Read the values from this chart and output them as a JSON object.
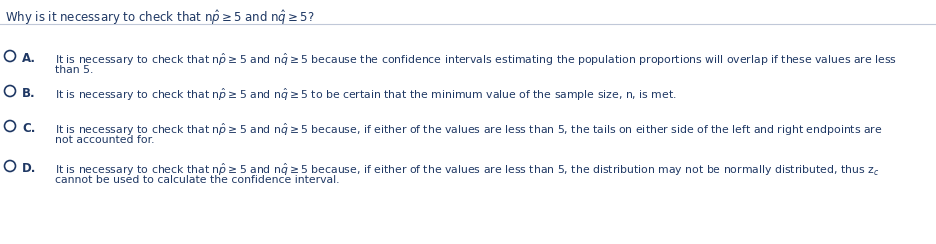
{
  "bg_color": "#ffffff",
  "text_color": "#1f3864",
  "separator_color": "#c0c8d8",
  "title_fontsize": 8.5,
  "option_fontsize": 7.8,
  "label_fontsize": 8.5,
  "fig_width": 9.37,
  "fig_height": 2.44,
  "dpi": 100,
  "title": "Why is it necessary to check that n$\\hat{p}$$\\geq$5 and n$\\hat{q}$$\\geq$5?",
  "options": [
    {
      "label": "A.",
      "line1": "It is necessary to check that n$\\hat{p}$$\\geq$5 and n$\\hat{q}$$\\geq$5 because the confidence intervals estimating the population proportions will overlap if these values are less",
      "line2": "than 5."
    },
    {
      "label": "B.",
      "line1": "It is necessary to check that n$\\hat{p}$$\\geq$5 and n$\\hat{q}$$\\geq$5 to be certain that the minimum value of the sample size, n, is met.",
      "line2": null
    },
    {
      "label": "C.",
      "line1": "It is necessary to check that n$\\hat{p}$$\\geq$5 and n$\\hat{q}$$\\geq$5 because, if either of the values are less than 5, the tails on either side of the left and right endpoints are",
      "line2": "not accounted for."
    },
    {
      "label": "D.",
      "line1": "It is necessary to check that n$\\hat{p}$$\\geq$5 and n$\\hat{q}$$\\geq$5 because, if either of the values are less than 5, the distribution may not be normally distributed, thus z$_c$",
      "line2": "cannot be used to calculate the confidence interval."
    }
  ]
}
